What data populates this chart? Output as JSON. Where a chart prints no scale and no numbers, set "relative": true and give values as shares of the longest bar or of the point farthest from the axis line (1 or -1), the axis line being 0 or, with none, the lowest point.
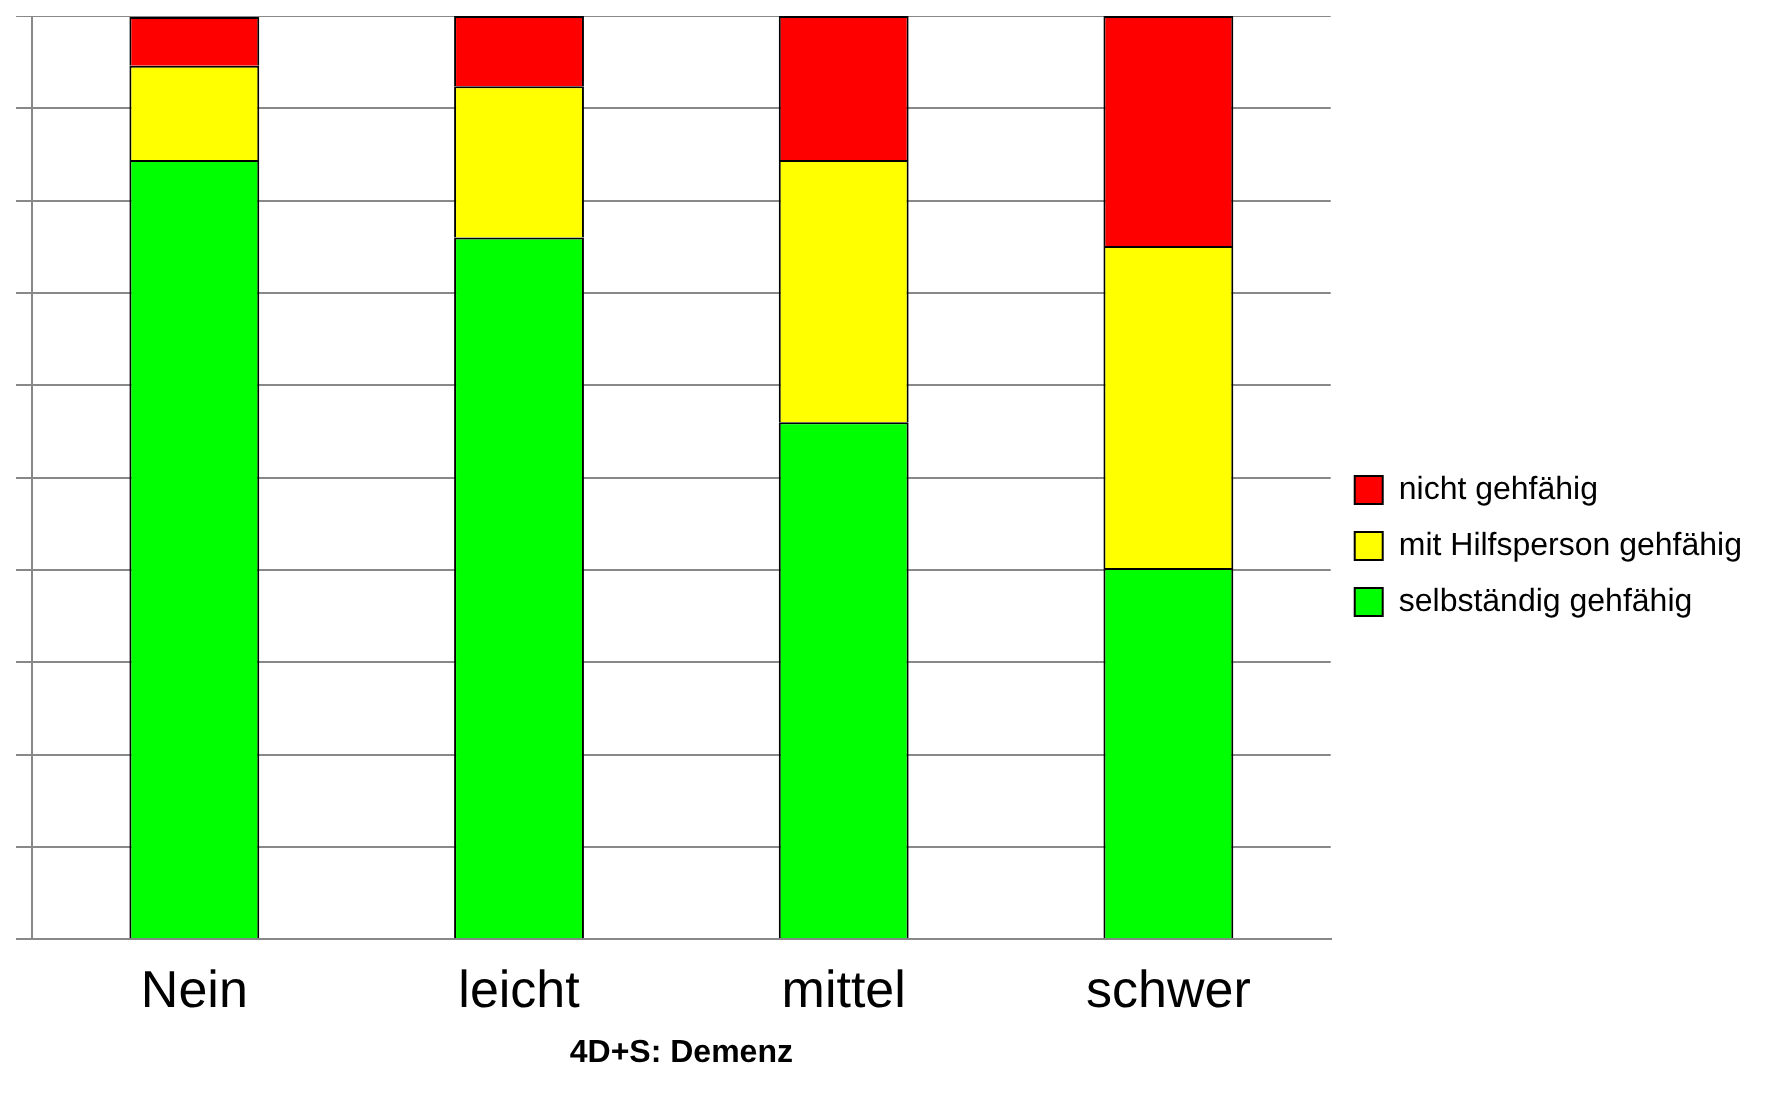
{
  "chart_data": {
    "type": "bar",
    "xlabel": "4D+S: Demenz",
    "categories": [
      "Nein",
      "leicht",
      "mittel",
      "schwer"
    ],
    "stacked": true,
    "relative": true,
    "grid": "y",
    "legend": "right",
    "series": [
      {
        "name": "selbständig gehfähig",
        "color": "#00ff00",
        "values": [
          0.844,
          0.76,
          0.56,
          0.402
        ]
      },
      {
        "name": "mit Hilfsperson gehfähig",
        "color": "#ffff00",
        "values": [
          0.102,
          0.164,
          0.284,
          0.349
        ]
      },
      {
        "name": "nicht gehfähig",
        "color": "#ff0000",
        "values": [
          0.053,
          0.076,
          0.156,
          0.249
        ]
      }
    ]
  }
}
